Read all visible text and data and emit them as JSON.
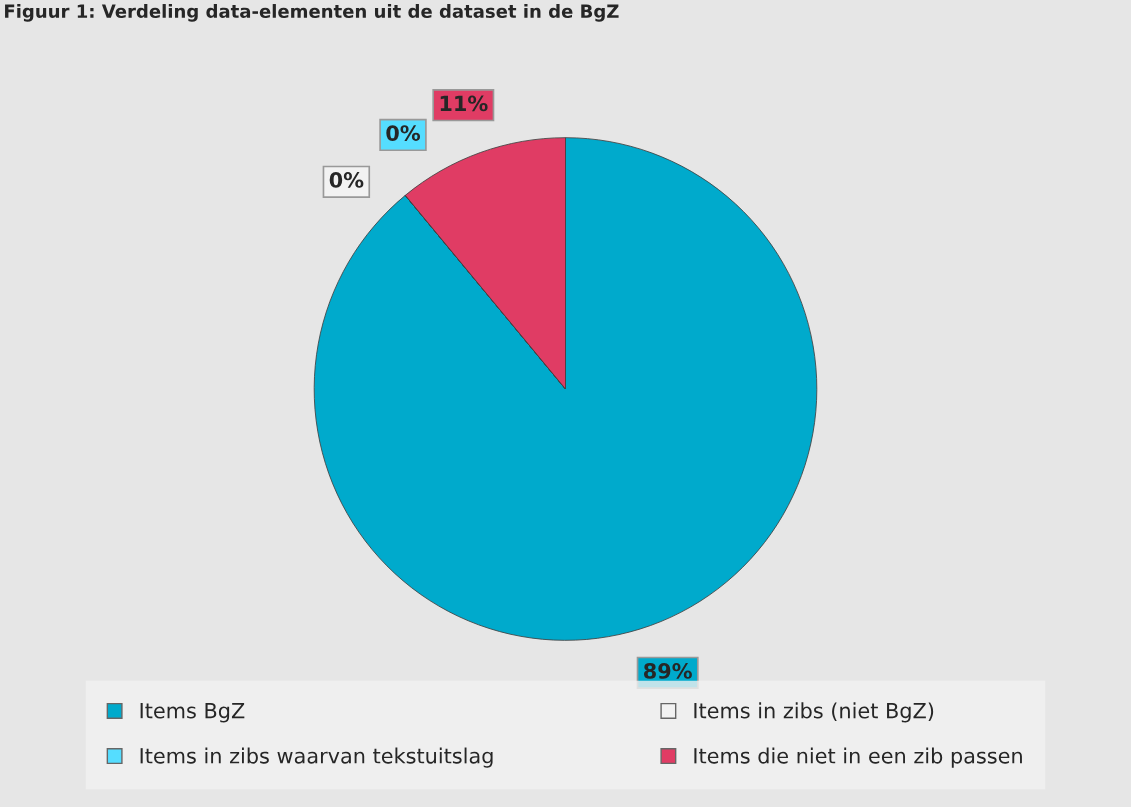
{
  "chart_data": {
    "type": "pie",
    "title": "Figuur 1: Verdeling data-elementen uit de dataset in de BgZ",
    "categories": [
      "Items BgZ",
      "Items in zibs (niet BgZ)",
      "Items in zibs waarvan tekstuitslag",
      "Items die niet in een zib passen"
    ],
    "values": [
      89,
      0,
      0,
      11
    ],
    "colors": [
      "#00aacc",
      "#f2f2f2",
      "#55ddff",
      "#e03c64"
    ],
    "value_labels": [
      "89%",
      "0%",
      "0%",
      "11%"
    ],
    "legend": "bottom"
  }
}
